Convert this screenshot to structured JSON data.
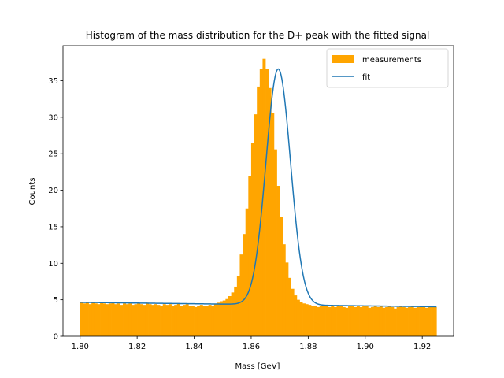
{
  "chart_data": {
    "type": "bar",
    "title": "Histogram of the mass distribution for the D+ peak with the fitted signal",
    "xlabel": "Mass [GeV]",
    "ylabel": "Counts",
    "xlim": [
      1.794,
      1.931
    ],
    "ylim": [
      0,
      39.8
    ],
    "xticks": [
      1.8,
      1.82,
      1.84,
      1.86,
      1.88,
      1.9,
      1.92
    ],
    "xtick_labels": [
      "1.80",
      "1.82",
      "1.84",
      "1.86",
      "1.88",
      "1.90",
      "1.92"
    ],
    "yticks": [
      0,
      5,
      10,
      15,
      20,
      25,
      30,
      35
    ],
    "ytick_labels": [
      "0",
      "5",
      "10",
      "15",
      "20",
      "25",
      "30",
      "35"
    ],
    "legend": {
      "placement": "upper right",
      "entries": [
        "measurements",
        "fit"
      ]
    },
    "grid": false,
    "colors": {
      "measurements": "#ffa500",
      "fit": "#1f77b4"
    },
    "series": [
      {
        "name": "measurements",
        "kind": "histogram",
        "bin_start": 1.8,
        "bin_width": 0.001,
        "values": [
          4.6,
          4.5,
          4.7,
          4.4,
          4.6,
          4.5,
          4.4,
          4.6,
          4.5,
          4.4,
          4.5,
          4.6,
          4.4,
          4.5,
          4.3,
          4.5,
          4.4,
          4.5,
          4.3,
          4.4,
          4.5,
          4.4,
          4.3,
          4.6,
          4.4,
          4.3,
          4.4,
          4.3,
          4.2,
          4.4,
          4.3,
          4.4,
          4.1,
          4.3,
          4.5,
          4.2,
          4.3,
          4.4,
          4.2,
          4.1,
          4.0,
          4.2,
          4.3,
          4.1,
          4.2,
          4.3,
          4.2,
          4.4,
          4.6,
          4.8,
          4.9,
          5.1,
          5.5,
          6.0,
          6.8,
          8.3,
          11.2,
          14.0,
          17.5,
          22.0,
          26.5,
          30.4,
          34.2,
          36.6,
          38.0,
          36.6,
          34.0,
          30.6,
          25.6,
          20.6,
          16.3,
          12.6,
          10.1,
          8.0,
          6.5,
          5.6,
          5.0,
          4.7,
          4.5,
          4.4,
          4.3,
          4.2,
          4.1,
          4.0,
          4.2,
          4.1,
          4.2,
          4.0,
          4.1,
          4.0,
          4.1,
          4.2,
          4.0,
          3.9,
          4.1,
          4.2,
          4.0,
          4.1,
          4.0,
          4.1,
          4.2,
          3.9,
          4.0,
          4.1,
          4.0,
          4.1,
          3.9,
          4.0,
          4.1,
          4.0,
          3.8,
          4.0,
          4.1,
          4.0,
          3.9,
          4.0,
          4.1,
          3.9,
          4.0,
          4.0,
          4.0,
          3.9,
          4.0,
          4.1,
          4.0
        ]
      },
      {
        "name": "fit",
        "kind": "line",
        "model": "gaussian_plus_linear",
        "mean": 1.8695,
        "sigma": 0.0043,
        "amplitude": 32.3,
        "background_start": 4.65,
        "background_end": 4.05,
        "x_range": [
          1.8,
          1.925
        ]
      }
    ]
  }
}
